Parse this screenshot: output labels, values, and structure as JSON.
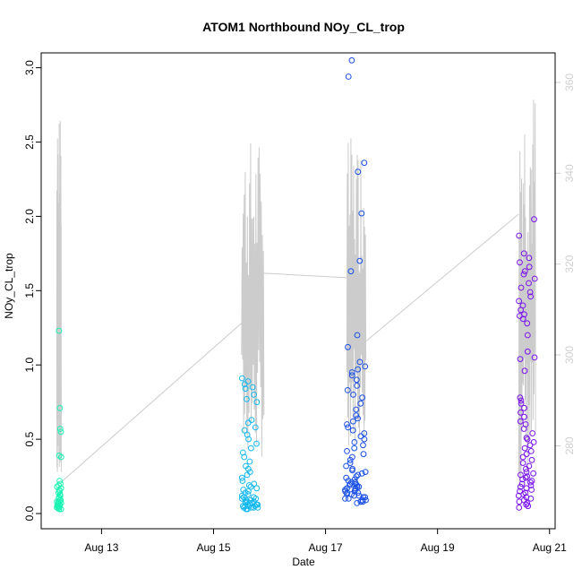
{
  "chart_data": {
    "type": "scatter",
    "title": "ATOM1 Northbound NOy_CL_trop",
    "xlabel": "Date",
    "ylabel": "NOy_CL_trop",
    "x_unit": "days since Aug 12 00:00",
    "xlim": [
      12.13,
      21.1
    ],
    "ylim": [
      -0.03,
      3.1
    ],
    "y2lim": [
      264.1,
      366.5
    ],
    "x_ticks": [
      {
        "value": 13,
        "label": "Aug 13"
      },
      {
        "value": 15,
        "label": "Aug 15"
      },
      {
        "value": 17,
        "label": "Aug 17"
      },
      {
        "value": 19,
        "label": "Aug 19"
      },
      {
        "value": 21,
        "label": "Aug 21"
      }
    ],
    "y_ticks": [
      {
        "value": 0.0,
        "label": "0.0"
      },
      {
        "value": 0.5,
        "label": "0.5"
      },
      {
        "value": 1.0,
        "label": "1.0"
      },
      {
        "value": 1.5,
        "label": "1.5"
      },
      {
        "value": 2.0,
        "label": "2.0"
      },
      {
        "value": 2.5,
        "label": "2.5"
      },
      {
        "value": 3.0,
        "label": "3.0"
      }
    ],
    "y2_ticks": [
      {
        "value": 280,
        "label": "280"
      },
      {
        "value": 300,
        "label": "300"
      },
      {
        "value": 320,
        "label": "320"
      },
      {
        "value": 340,
        "label": "340"
      },
      {
        "value": 360,
        "label": "360"
      }
    ],
    "grid": false,
    "colors": {
      "line": "#cccccc",
      "right_axis": "#cfcfcf",
      "flight1": "#1bf3b4",
      "flight2": "#14b8ef",
      "flight3": "#1a4fe6",
      "flight4": "#7a12ec"
    },
    "flights": [
      {
        "color_key": "flight1",
        "x_range": [
          12.2,
          12.28
        ],
        "y_values": [
          1.23,
          0.71,
          0.57,
          0.55,
          0.39,
          0.38,
          0.22,
          0.2,
          0.19,
          0.18,
          0.17,
          0.16,
          0.15,
          0.14,
          0.13,
          0.12,
          0.11,
          0.1,
          0.09,
          0.09,
          0.08,
          0.08,
          0.07,
          0.07,
          0.06,
          0.06,
          0.05,
          0.05,
          0.05,
          0.04,
          0.04,
          0.04,
          0.03,
          0.03
        ]
      },
      {
        "color_key": "flight2",
        "x_range": [
          15.5,
          15.8
        ],
        "y_values": [
          0.91,
          0.89,
          0.87,
          0.85,
          0.84,
          0.8,
          0.77,
          0.75,
          0.63,
          0.61,
          0.58,
          0.56,
          0.53,
          0.5,
          0.47,
          0.44,
          0.41,
          0.38,
          0.35,
          0.32,
          0.3,
          0.28,
          0.26,
          0.24,
          0.22,
          0.2,
          0.19,
          0.18,
          0.17,
          0.16,
          0.15,
          0.14,
          0.13,
          0.12,
          0.11,
          0.11,
          0.1,
          0.1,
          0.09,
          0.09,
          0.08,
          0.08,
          0.08,
          0.07,
          0.07,
          0.07,
          0.06,
          0.06,
          0.06,
          0.06,
          0.05,
          0.05,
          0.05,
          0.05,
          0.04,
          0.04,
          0.04,
          0.04,
          0.03,
          0.03
        ]
      },
      {
        "color_key": "flight3",
        "x_range": [
          17.35,
          17.72
        ],
        "y_values": [
          3.05,
          2.94,
          2.36,
          2.3,
          2.02,
          1.7,
          1.63,
          1.2,
          1.12,
          1.02,
          0.99,
          0.97,
          0.95,
          0.93,
          0.9,
          0.86,
          0.83,
          0.8,
          0.78,
          0.74,
          0.7,
          0.66,
          0.64,
          0.62,
          0.6,
          0.58,
          0.56,
          0.54,
          0.52,
          0.5,
          0.48,
          0.46,
          0.44,
          0.42,
          0.4,
          0.38,
          0.36,
          0.34,
          0.32,
          0.3,
          0.29,
          0.28,
          0.27,
          0.26,
          0.25,
          0.24,
          0.23,
          0.22,
          0.21,
          0.21,
          0.2,
          0.2,
          0.19,
          0.19,
          0.18,
          0.18,
          0.17,
          0.17,
          0.16,
          0.16,
          0.15,
          0.15,
          0.14,
          0.14,
          0.13,
          0.13,
          0.12,
          0.12,
          0.11,
          0.11,
          0.1,
          0.1,
          0.09,
          0.09,
          0.08,
          0.08,
          0.07
        ]
      },
      {
        "color_key": "flight4",
        "x_range": [
          20.45,
          20.75
        ],
        "y_values": [
          1.98,
          1.87,
          1.75,
          1.72,
          1.69,
          1.66,
          1.63,
          1.61,
          1.58,
          1.55,
          1.52,
          1.49,
          1.46,
          1.43,
          1.4,
          1.37,
          1.34,
          1.33,
          1.31,
          1.28,
          1.2,
          1.09,
          1.05,
          1.04,
          0.96,
          0.78,
          0.76,
          0.74,
          0.71,
          0.68,
          0.65,
          0.62,
          0.6,
          0.57,
          0.54,
          0.51,
          0.5,
          0.48,
          0.46,
          0.44,
          0.42,
          0.4,
          0.38,
          0.36,
          0.34,
          0.32,
          0.3,
          0.28,
          0.27,
          0.26,
          0.25,
          0.24,
          0.23,
          0.22,
          0.21,
          0.2,
          0.19,
          0.18,
          0.17,
          0.16,
          0.15,
          0.14,
          0.13,
          0.12,
          0.11,
          0.1,
          0.09,
          0.08,
          0.07,
          0.06,
          0.05,
          0.04
        ]
      }
    ],
    "secondary_line": {
      "axis": "right",
      "segments": [
        {
          "x_range": [
            12.2,
            12.28
          ],
          "y2_range": [
            272,
            352
          ]
        },
        {
          "x_range": [
            15.5,
            15.9
          ],
          "y2_range": [
            277,
            348
          ]
        },
        {
          "x_range": [
            17.38,
            17.72
          ],
          "y2_range": [
            280,
            348
          ]
        },
        {
          "x_range": [
            20.45,
            20.75
          ],
          "y2_range": [
            270,
            360
          ]
        }
      ],
      "connectors": [
        {
          "from": [
            12.28,
            272
          ],
          "to": [
            15.5,
            307
          ]
        },
        {
          "from": [
            15.9,
            318
          ],
          "to": [
            17.38,
            317
          ]
        },
        {
          "from": [
            17.72,
            303
          ],
          "to": [
            20.45,
            331
          ]
        }
      ]
    }
  }
}
